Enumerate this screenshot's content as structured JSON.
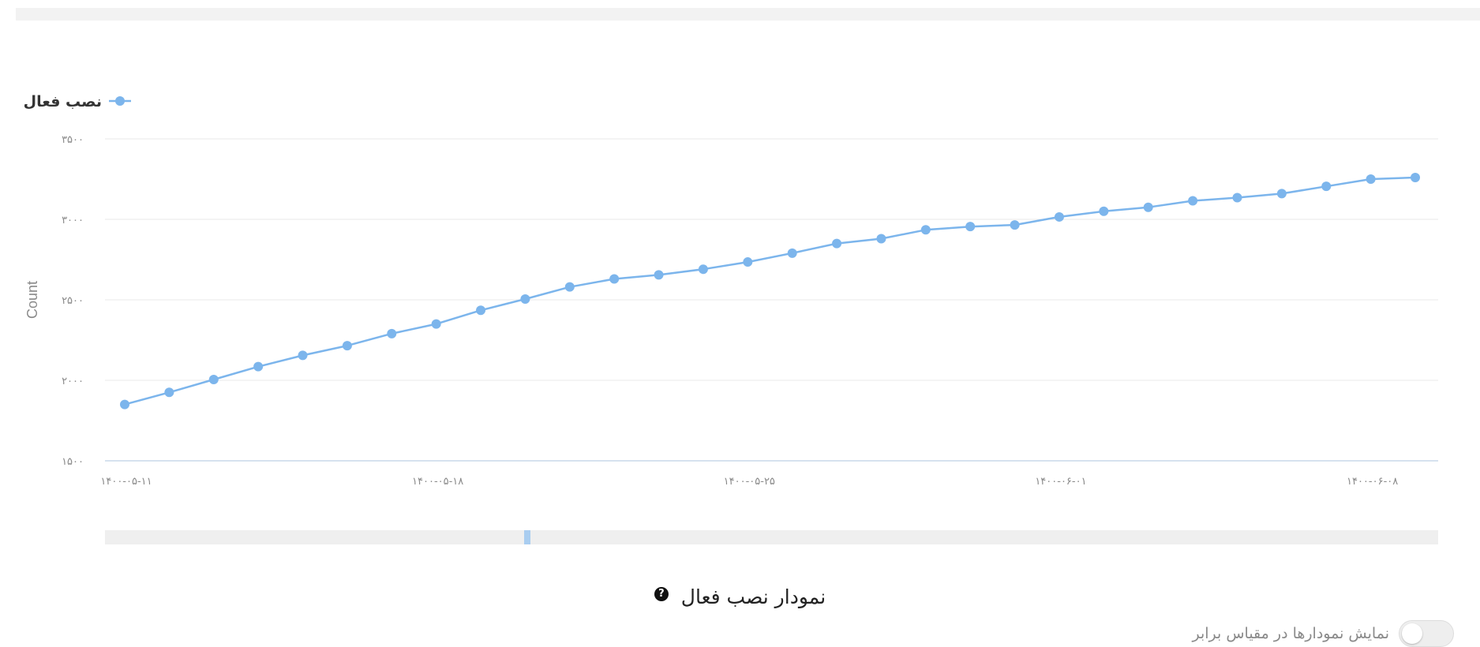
{
  "chart_data": {
    "type": "line",
    "title": "",
    "xlabel": "",
    "ylabel": "Count",
    "ylim": [
      1500,
      3500
    ],
    "yticks": [
      "۱۵۰۰",
      "۲۰۰۰",
      "۲۵۰۰",
      "۳۰۰۰",
      "۳۵۰۰"
    ],
    "ytick_values": [
      1500,
      2000,
      2500,
      3000,
      3500
    ],
    "grid": true,
    "legend": "top-left",
    "xtick_labels": [
      "۱۴۰۰-۰۵-۱۱",
      "۱۴۰۰-۰۵-۱۸",
      "۱۴۰۰-۰۵-۲۵",
      "۱۴۰۰-۰۶-۰۱",
      "۱۴۰۰-۰۶-۰۸"
    ],
    "xtick_indices": [
      0,
      7,
      14,
      21,
      28
    ],
    "x": [
      "1400-05-11",
      "1400-05-12",
      "1400-05-13",
      "1400-05-14",
      "1400-05-15",
      "1400-05-16",
      "1400-05-17",
      "1400-05-18",
      "1400-05-19",
      "1400-05-20",
      "1400-05-21",
      "1400-05-22",
      "1400-05-23",
      "1400-05-24",
      "1400-05-25",
      "1400-05-26",
      "1400-05-27",
      "1400-05-28",
      "1400-05-29",
      "1400-05-30",
      "1400-05-31",
      "1400-06-01",
      "1400-06-02",
      "1400-06-03",
      "1400-06-04",
      "1400-06-05",
      "1400-06-06",
      "1400-06-07",
      "1400-06-08",
      "1400-06-09"
    ],
    "series": [
      {
        "name": "نصب فعال",
        "color": "#7cb5ec",
        "values": [
          1850,
          1925,
          2005,
          2085,
          2155,
          2215,
          2290,
          2350,
          2435,
          2505,
          2580,
          2630,
          2655,
          2690,
          2735,
          2790,
          2850,
          2880,
          2935,
          2955,
          2965,
          3015,
          3050,
          3075,
          3115,
          3135,
          3160,
          3205,
          3250,
          3260
        ]
      }
    ]
  },
  "footer": {
    "chart_title": "نمودار نصب فعال",
    "help_icon": "question-circle-icon",
    "help_glyph": "?"
  },
  "scale_toggle": {
    "label": "نمایش نمودارها در مقیاس برابر",
    "on": false
  }
}
